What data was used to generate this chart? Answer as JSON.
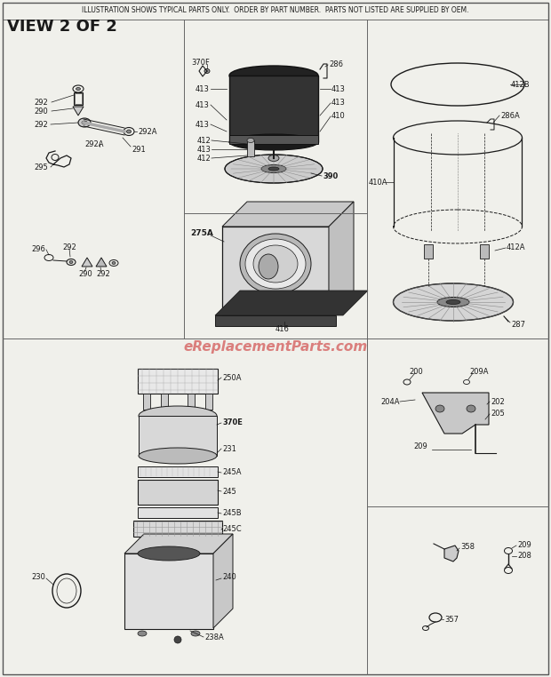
{
  "title_line1": "ILLUSTRATION SHOWS TYPICAL PARTS ONLY.  ORDER BY PART NUMBER.  PARTS NOT LISTED ARE SUPPLIED BY OEM.",
  "title_line2": "VIEW 2 OF 2",
  "bg_color": "#f0f0eb",
  "line_color": "#1a1a1a",
  "text_color": "#1a1a1a",
  "watermark": "eReplacementParts.com",
  "watermark_color": "#cc3333",
  "fig_width": 6.2,
  "fig_height": 7.62,
  "dpi": 100
}
